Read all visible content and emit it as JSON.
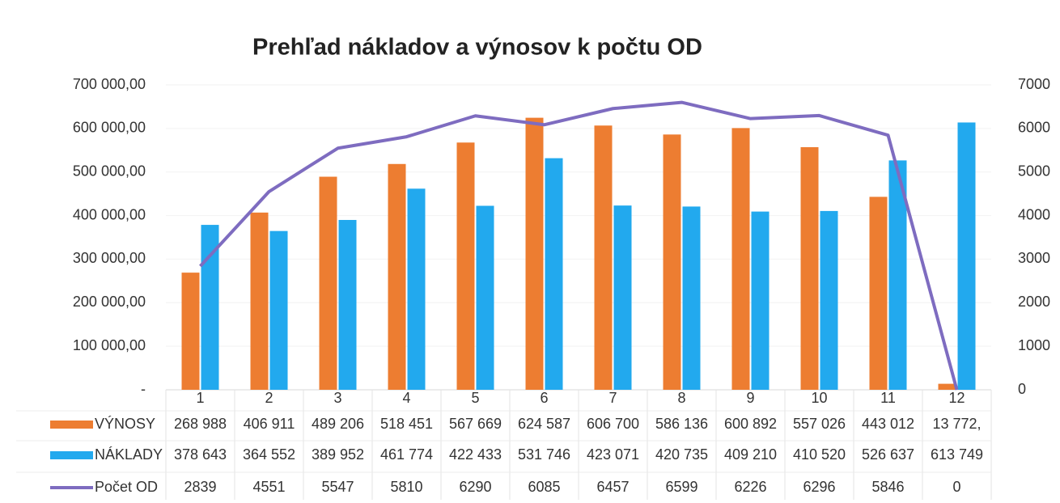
{
  "chart_data": {
    "type": "bar",
    "title": "Prehľad nákladov a výnosov k počtu OD",
    "categories": [
      "1",
      "2",
      "3",
      "4",
      "5",
      "6",
      "7",
      "8",
      "9",
      "10",
      "11",
      "12"
    ],
    "series": [
      {
        "name": "VÝNOSY",
        "color": "#ed7d31",
        "values": [
          268988,
          406911,
          489206,
          518451,
          567669,
          624587,
          606700,
          586136,
          600892,
          557026,
          443012,
          13772
        ],
        "value_labels": [
          "268 988",
          "406 911",
          "489 206",
          "518 451",
          "567 669",
          "624 587",
          "606 700",
          "586 136",
          "600 892",
          "557 026",
          "443 012",
          "13 772,"
        ]
      },
      {
        "name": "NÁKLADY",
        "color": "#22a9ee",
        "values": [
          378643,
          364552,
          389952,
          461774,
          422433,
          531746,
          423071,
          420735,
          409210,
          410520,
          526637,
          613749
        ],
        "value_labels": [
          "378 643",
          "364 552",
          "389 952",
          "461 774",
          "422 433",
          "531 746",
          "423 071",
          "420 735",
          "409 210",
          "410 520",
          "526 637",
          "613 749"
        ]
      },
      {
        "name": "Počet OD",
        "color": "#7e6cc0",
        "type": "line",
        "axis": "y2",
        "values": [
          2839,
          4551,
          5547,
          5810,
          6290,
          6085,
          6457,
          6599,
          6226,
          6296,
          5846,
          0
        ]
      }
    ],
    "ylim": [
      0,
      700000
    ],
    "yticks": [
      {
        "value": 0,
        "label": "-"
      },
      {
        "value": 100000,
        "label": "100 000,00"
      },
      {
        "value": 200000,
        "label": "200 000,00"
      },
      {
        "value": 300000,
        "label": "300 000,00"
      },
      {
        "value": 400000,
        "label": "400 000,00"
      },
      {
        "value": 500000,
        "label": "500 000,00"
      },
      {
        "value": 600000,
        "label": "600 000,00"
      },
      {
        "value": 700000,
        "label": "700 000,00"
      }
    ],
    "y2lim": [
      0,
      7000
    ],
    "y2ticks": [
      0,
      1000,
      2000,
      3000,
      4000,
      5000,
      6000,
      7000
    ],
    "grid": true,
    "data_table": true
  }
}
